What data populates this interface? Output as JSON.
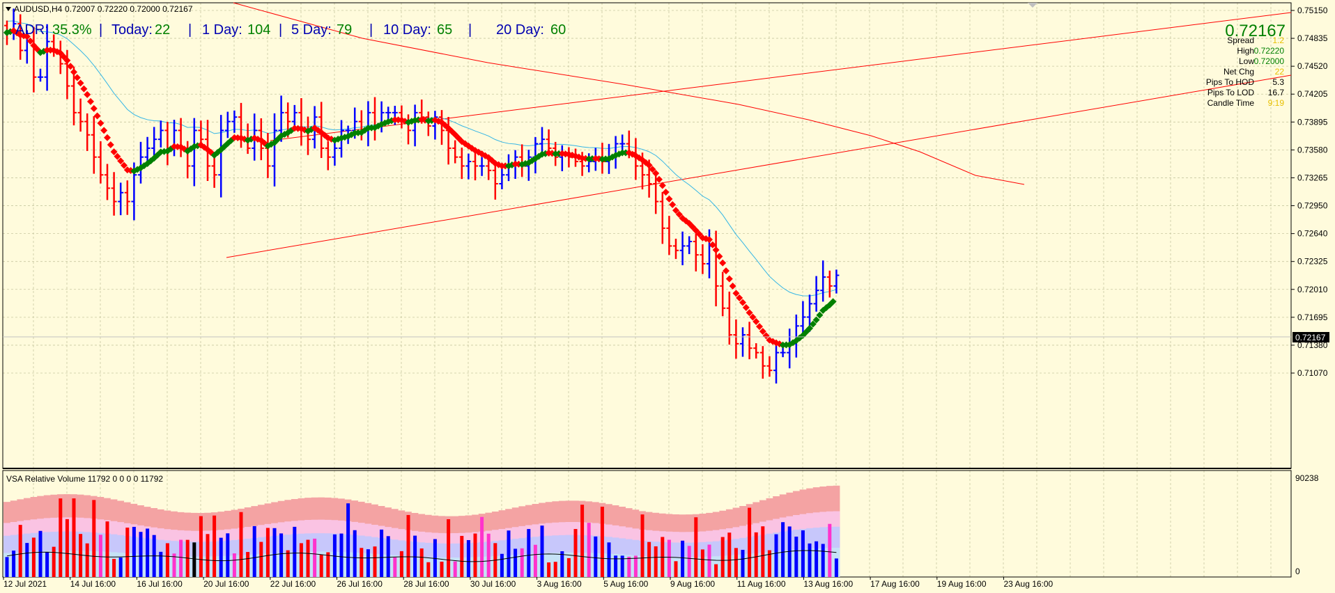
{
  "window": {
    "title": "AUDUSD,H4",
    "ohlc": "0.72007 0.72220 0.72000 0.72167"
  },
  "adr": {
    "adr_label": "ADR:",
    "adr_value": "35.3%",
    "today_label": "Today:",
    "today_value": "22",
    "d1_label": "1 Day:",
    "d1_value": "104",
    "d5_label": "5 Day:",
    "d5_value": "79",
    "d10_label": "10 Day:",
    "d10_value": "65",
    "d20_label": "20 Day:",
    "d20_value": "60",
    "sep": "|"
  },
  "info_panel": {
    "price": "0.72167",
    "rows": [
      {
        "label": "Spread",
        "value": "1.2",
        "color": "#e8c000"
      },
      {
        "label": "High",
        "value": "0.72220",
        "color": "#008000"
      },
      {
        "label": "Low",
        "value": "0.72000",
        "color": "#008000"
      },
      {
        "label": "Net Chg",
        "value": "22",
        "color": "#e8c000"
      },
      {
        "label": "Pips To HOD",
        "value": "5.3",
        "color": "#000000"
      },
      {
        "label": "Pips To LOD",
        "value": "16.7",
        "color": "#000000"
      },
      {
        "label": "Candle Time",
        "value": "9:19",
        "color": "#e8c000"
      }
    ]
  },
  "price_axis": {
    "ticks": [
      "0.75150",
      "0.74835",
      "0.74520",
      "0.74205",
      "0.73895",
      "0.73580",
      "0.73265",
      "0.72950",
      "0.72640",
      "0.72325",
      "0.72010",
      "0.71695",
      "0.71380",
      "0.71070"
    ],
    "current": "0.72167"
  },
  "volume_panel": {
    "title": "VSA Relative Volume 11792 0 0 0 0 11792",
    "axis_top": "90238",
    "axis_bottom": "0"
  },
  "time_axis": [
    "12 Jul 2021",
    "14 Jul 16:00",
    "16 Jul 16:00",
    "20 Jul 16:00",
    "22 Jul 16:00",
    "26 Jul 16:00",
    "28 Jul 16:00",
    "30 Jul 16:00",
    "3 Aug 16:00",
    "5 Aug 16:00",
    "9 Aug 16:00",
    "11 Aug 16:00",
    "13 Aug 16:00",
    "17 Aug 16:00",
    "19 Aug 16:00",
    "23 Aug 16:00"
  ],
  "colors": {
    "bg": "#fffbdc",
    "bull": "#0000ff",
    "bear": "#ff0000",
    "ma_fast_up": "#008000",
    "ma_fast_down": "#ff0000",
    "ma_slow": "#33b5e5",
    "trendline": "#ff0000"
  },
  "chart_data": {
    "type": "bar",
    "symbol": "AUDUSD",
    "timeframe": "H4",
    "ylim": [
      0.71,
      0.752
    ],
    "x_start": "2021-07-12",
    "bars_per_day": 6,
    "close_path": [
      0.749,
      0.75,
      0.747,
      0.748,
      0.744,
      0.744,
      0.748,
      0.747,
      0.7455,
      0.743,
      0.74,
      0.739,
      0.7375,
      0.735,
      0.733,
      0.7315,
      0.73,
      0.731,
      0.73,
      0.733,
      0.735,
      0.736,
      0.737,
      0.738,
      0.736,
      0.738,
      0.736,
      0.734,
      0.738,
      0.737,
      0.734,
      0.733,
      0.738,
      0.739,
      0.7395,
      0.737,
      0.736,
      0.738,
      0.736,
      0.734,
      0.738,
      0.74,
      0.739,
      0.74,
      0.738,
      0.737,
      0.7395,
      0.736,
      0.735,
      0.736,
      0.738,
      0.738,
      0.739,
      0.738,
      0.74,
      0.7385,
      0.74,
      0.74,
      0.74,
      0.739,
      0.738,
      0.74,
      0.7395,
      0.7385,
      0.7395,
      0.738,
      0.736,
      0.735,
      0.734,
      0.7345,
      0.734,
      0.734,
      0.7335,
      0.732,
      0.733,
      0.734,
      0.735,
      0.734,
      0.735,
      0.7365,
      0.737,
      0.736,
      0.735,
      0.7355,
      0.735,
      0.7345,
      0.734,
      0.7345,
      0.735,
      0.7345,
      0.735,
      0.7365,
      0.7365,
      0.7355,
      0.734,
      0.733,
      0.732,
      0.73,
      0.727,
      0.725,
      0.7245,
      0.725,
      0.7255,
      0.724,
      0.723,
      0.725,
      0.7205,
      0.718,
      0.715,
      0.714,
      0.715,
      0.7135,
      0.713,
      0.7115,
      0.711,
      0.713,
      0.713,
      0.714,
      0.716,
      0.717,
      0.7185,
      0.72,
      0.7215,
      0.7205,
      0.7217
    ],
    "volume_range": [
      0,
      90238
    ],
    "series": [
      {
        "values": []
      }
    ]
  }
}
